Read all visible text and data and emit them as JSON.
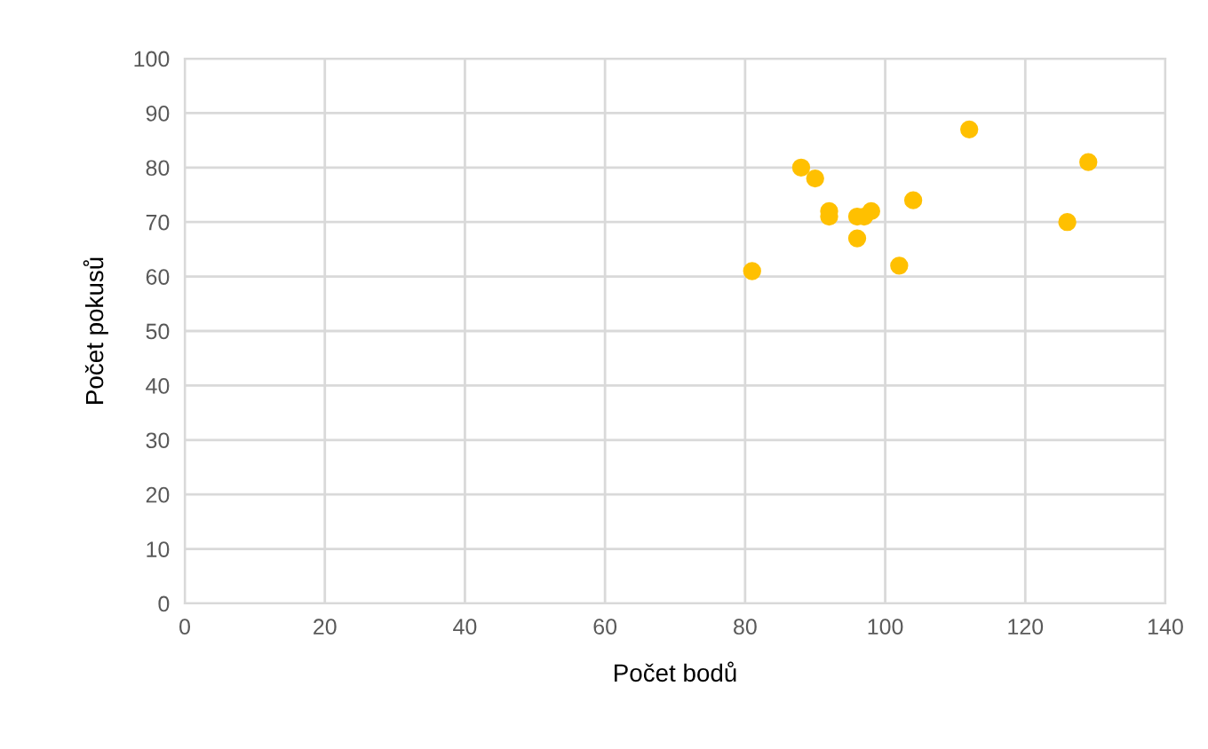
{
  "chart_data": {
    "type": "scatter",
    "xlabel": "Počet bodů",
    "ylabel": "Počet pokusů",
    "x": [
      81,
      88,
      90,
      92,
      92,
      96,
      96,
      97,
      98,
      104,
      102,
      112,
      126,
      129
    ],
    "series": [
      {
        "color": "#ffc000",
        "values": [
          61,
          80,
          78,
          72,
          71,
          67,
          71,
          71,
          72,
          74,
          62,
          87,
          70,
          81
        ]
      }
    ],
    "xlim": [
      0,
      140
    ],
    "xticks": [
      0,
      20,
      40,
      60,
      80,
      100,
      120,
      140
    ],
    "ylim": [
      0,
      100
    ],
    "yticks": [
      0,
      10,
      20,
      30,
      40,
      50,
      60,
      70,
      80,
      90,
      100
    ],
    "grid": true,
    "marker": "circle",
    "legend": false
  }
}
